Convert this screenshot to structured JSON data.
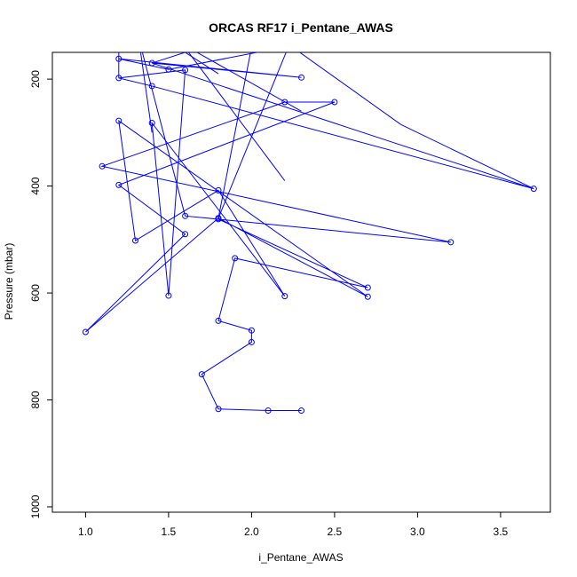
{
  "chart_data": {
    "type": "line",
    "title": "ORCAS RF17 i_Pentane_AWAS",
    "xlabel": "i_Pentane_AWAS",
    "ylabel": "Pressure (mbar)",
    "xlim": [
      0.8,
      3.8
    ],
    "ylim": [
      1010,
      150
    ],
    "y_reversed": true,
    "x_ticks": [
      1.0,
      1.5,
      2.0,
      2.5,
      3.0,
      3.5
    ],
    "y_ticks": [
      200,
      400,
      600,
      800,
      1000
    ],
    "x_tick_labels": [
      "1.0",
      "1.5",
      "2.0",
      "2.5",
      "3.0",
      "3.5"
    ],
    "y_tick_labels": [
      "200",
      "400",
      "600",
      "800",
      "1000"
    ],
    "grid": false,
    "line_color": "#0000ff",
    "marker": "open-circle",
    "series": [
      {
        "x": [
          2.3,
          2.1,
          1.8,
          1.7,
          2.0,
          2.0,
          1.8,
          1.9,
          2.7,
          1.8,
          1.6,
          3.2,
          1.1,
          2.2,
          2.5,
          1.2,
          1.6,
          1.0,
          1.8,
          2.7,
          1.2,
          1.3,
          1.8,
          2.2,
          1.4,
          1.5,
          1.6,
          1.2,
          1.4,
          3.7,
          1.4,
          2.3,
          1.2,
          1.5
        ],
        "y": [
          820,
          820,
          817,
          752,
          692,
          670,
          652,
          535,
          590,
          462,
          456,
          505,
          363,
          243,
          243,
          398,
          490,
          673,
          460,
          607,
          278,
          502,
          408,
          606,
          282,
          605,
          183,
          198,
          213,
          405,
          170,
          197,
          162,
          182
        ]
      }
    ],
    "offscreen_segments": [
      {
        "x": [
          1.4,
          1.9
        ],
        "y": [
          170,
          120
        ]
      },
      {
        "x": [
          1.5,
          2.7
        ],
        "y": [
          182,
          110
        ]
      },
      {
        "x": [
          2.0,
          1.8
        ],
        "y": [
          140,
          460
        ]
      },
      {
        "x": [
          1.8,
          2.3
        ],
        "y": [
          460,
          80
        ]
      },
      {
        "x": [
          1.4,
          1.8
        ],
        "y": [
          110,
          190
        ]
      },
      {
        "x": [
          1.5,
          2.3
        ],
        "y": [
          120,
          260
        ]
      },
      {
        "x": [
          1.5,
          2.2
        ],
        "y": [
          100,
          390
        ]
      },
      {
        "x": [
          2.2,
          2.9
        ],
        "y": [
          130,
          285
        ]
      },
      {
        "x": [
          2.9,
          3.7
        ],
        "y": [
          285,
          405
        ]
      },
      {
        "x": [
          1.3,
          1.4
        ],
        "y": [
          80,
          300
        ]
      },
      {
        "x": [
          1.2,
          1.2
        ],
        "y": [
          100,
          198
        ]
      },
      {
        "x": [
          1.3,
          1.6
        ],
        "y": [
          100,
          456
        ]
      }
    ]
  }
}
